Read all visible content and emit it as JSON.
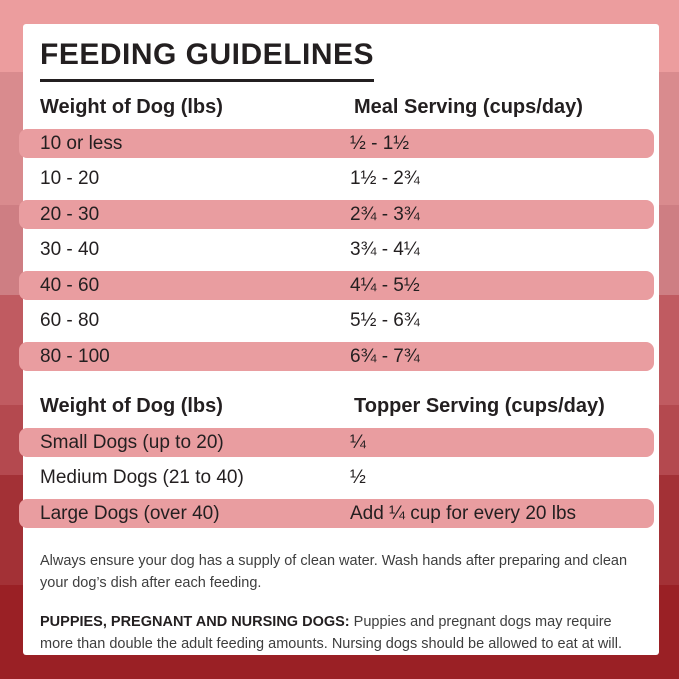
{
  "page": {
    "title": "FEEDING GUIDELINES"
  },
  "colors": {
    "accent_pink": "#e99da0",
    "card_bg": "#ffffff",
    "text_dark": "#231f20",
    "note_text": "#3e3e3e",
    "bg_band_1": "#ec9d9e",
    "bg_band_2": "#d98b8e",
    "bg_band_3": "#ce7e83",
    "bg_band_4": "#c05b61",
    "bg_band_5": "#b4494f",
    "bg_band_6": "#a33136",
    "bg_band_7": "#9a2025"
  },
  "meal_table": {
    "headers": [
      "Weight of Dog (lbs)",
      "Meal Serving (cups/day)"
    ],
    "rows": [
      {
        "weight": "10 or less",
        "serving": "½ - 1½"
      },
      {
        "weight": "10 - 20",
        "serving": "1½ - 2¾"
      },
      {
        "weight": "20 - 30",
        "serving": "2¾ - 3¾"
      },
      {
        "weight": "30 - 40",
        "serving": "3¾ - 4¼"
      },
      {
        "weight": "40 - 60",
        "serving": "4¼ - 5½"
      },
      {
        "weight": "60 - 80",
        "serving": "5½ - 6¾"
      },
      {
        "weight": "80 - 100",
        "serving": "6¾ - 7¾"
      }
    ]
  },
  "topper_table": {
    "headers": [
      "Weight of Dog (lbs)",
      "Topper Serving (cups/day)"
    ],
    "rows": [
      {
        "weight": "Small Dogs (up to 20)",
        "serving": "¼"
      },
      {
        "weight": "Medium Dogs (21 to 40)",
        "serving": "½"
      },
      {
        "weight": "Large Dogs (over 40)",
        "serving": "Add ¼ cup for every 20 lbs"
      }
    ]
  },
  "notes": {
    "water": "Always ensure your dog has a supply of clean water. Wash hands after preparing and clean your dog’s dish after each feeding.",
    "puppies_label": "PUPPIES, PREGNANT AND NURSING DOGS:",
    "puppies_text": " Puppies and pregnant dogs may require more than double the adult feeding amounts. Nursing dogs should be allowed to eat at will."
  }
}
